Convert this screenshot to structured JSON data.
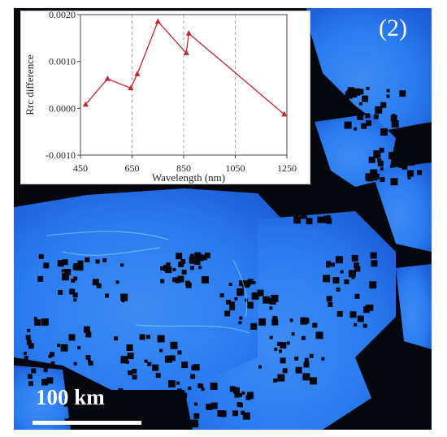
{
  "figure": {
    "panel_label": "(2)",
    "scale_bar_label": "100 km",
    "colors": {
      "water_blue": "#2a7cf0",
      "water_deep": "#1d5fd8",
      "cloud_mask": "#05070d",
      "line_color": "#c0282e"
    },
    "map_description_visible": false
  },
  "chart_data": {
    "type": "line",
    "x": [
      470,
      555,
      645,
      670,
      750,
      860,
      870,
      1240
    ],
    "series": [
      {
        "values": [
          8e-05,
          0.00063,
          0.00043,
          0.00073,
          0.00185,
          0.00118,
          0.0016,
          -0.00013
        ]
      }
    ],
    "marker": "triangle",
    "xlabel": "Wavelength (nm)",
    "ylabel": "Rrc difference",
    "xlim": [
      450,
      1250
    ],
    "ylim": [
      -0.001,
      0.002
    ],
    "xticks": [
      450,
      650,
      850,
      1050,
      1250
    ],
    "xtick_labels": [
      "450",
      "650",
      "850",
      "1050",
      "1250"
    ],
    "yticks": [
      -0.001,
      0.0,
      0.001,
      0.002
    ],
    "ytick_labels": [
      "-0.0010",
      "0.0000",
      "0.0010",
      "0.0020"
    ],
    "grid": "vertical-dashed"
  }
}
